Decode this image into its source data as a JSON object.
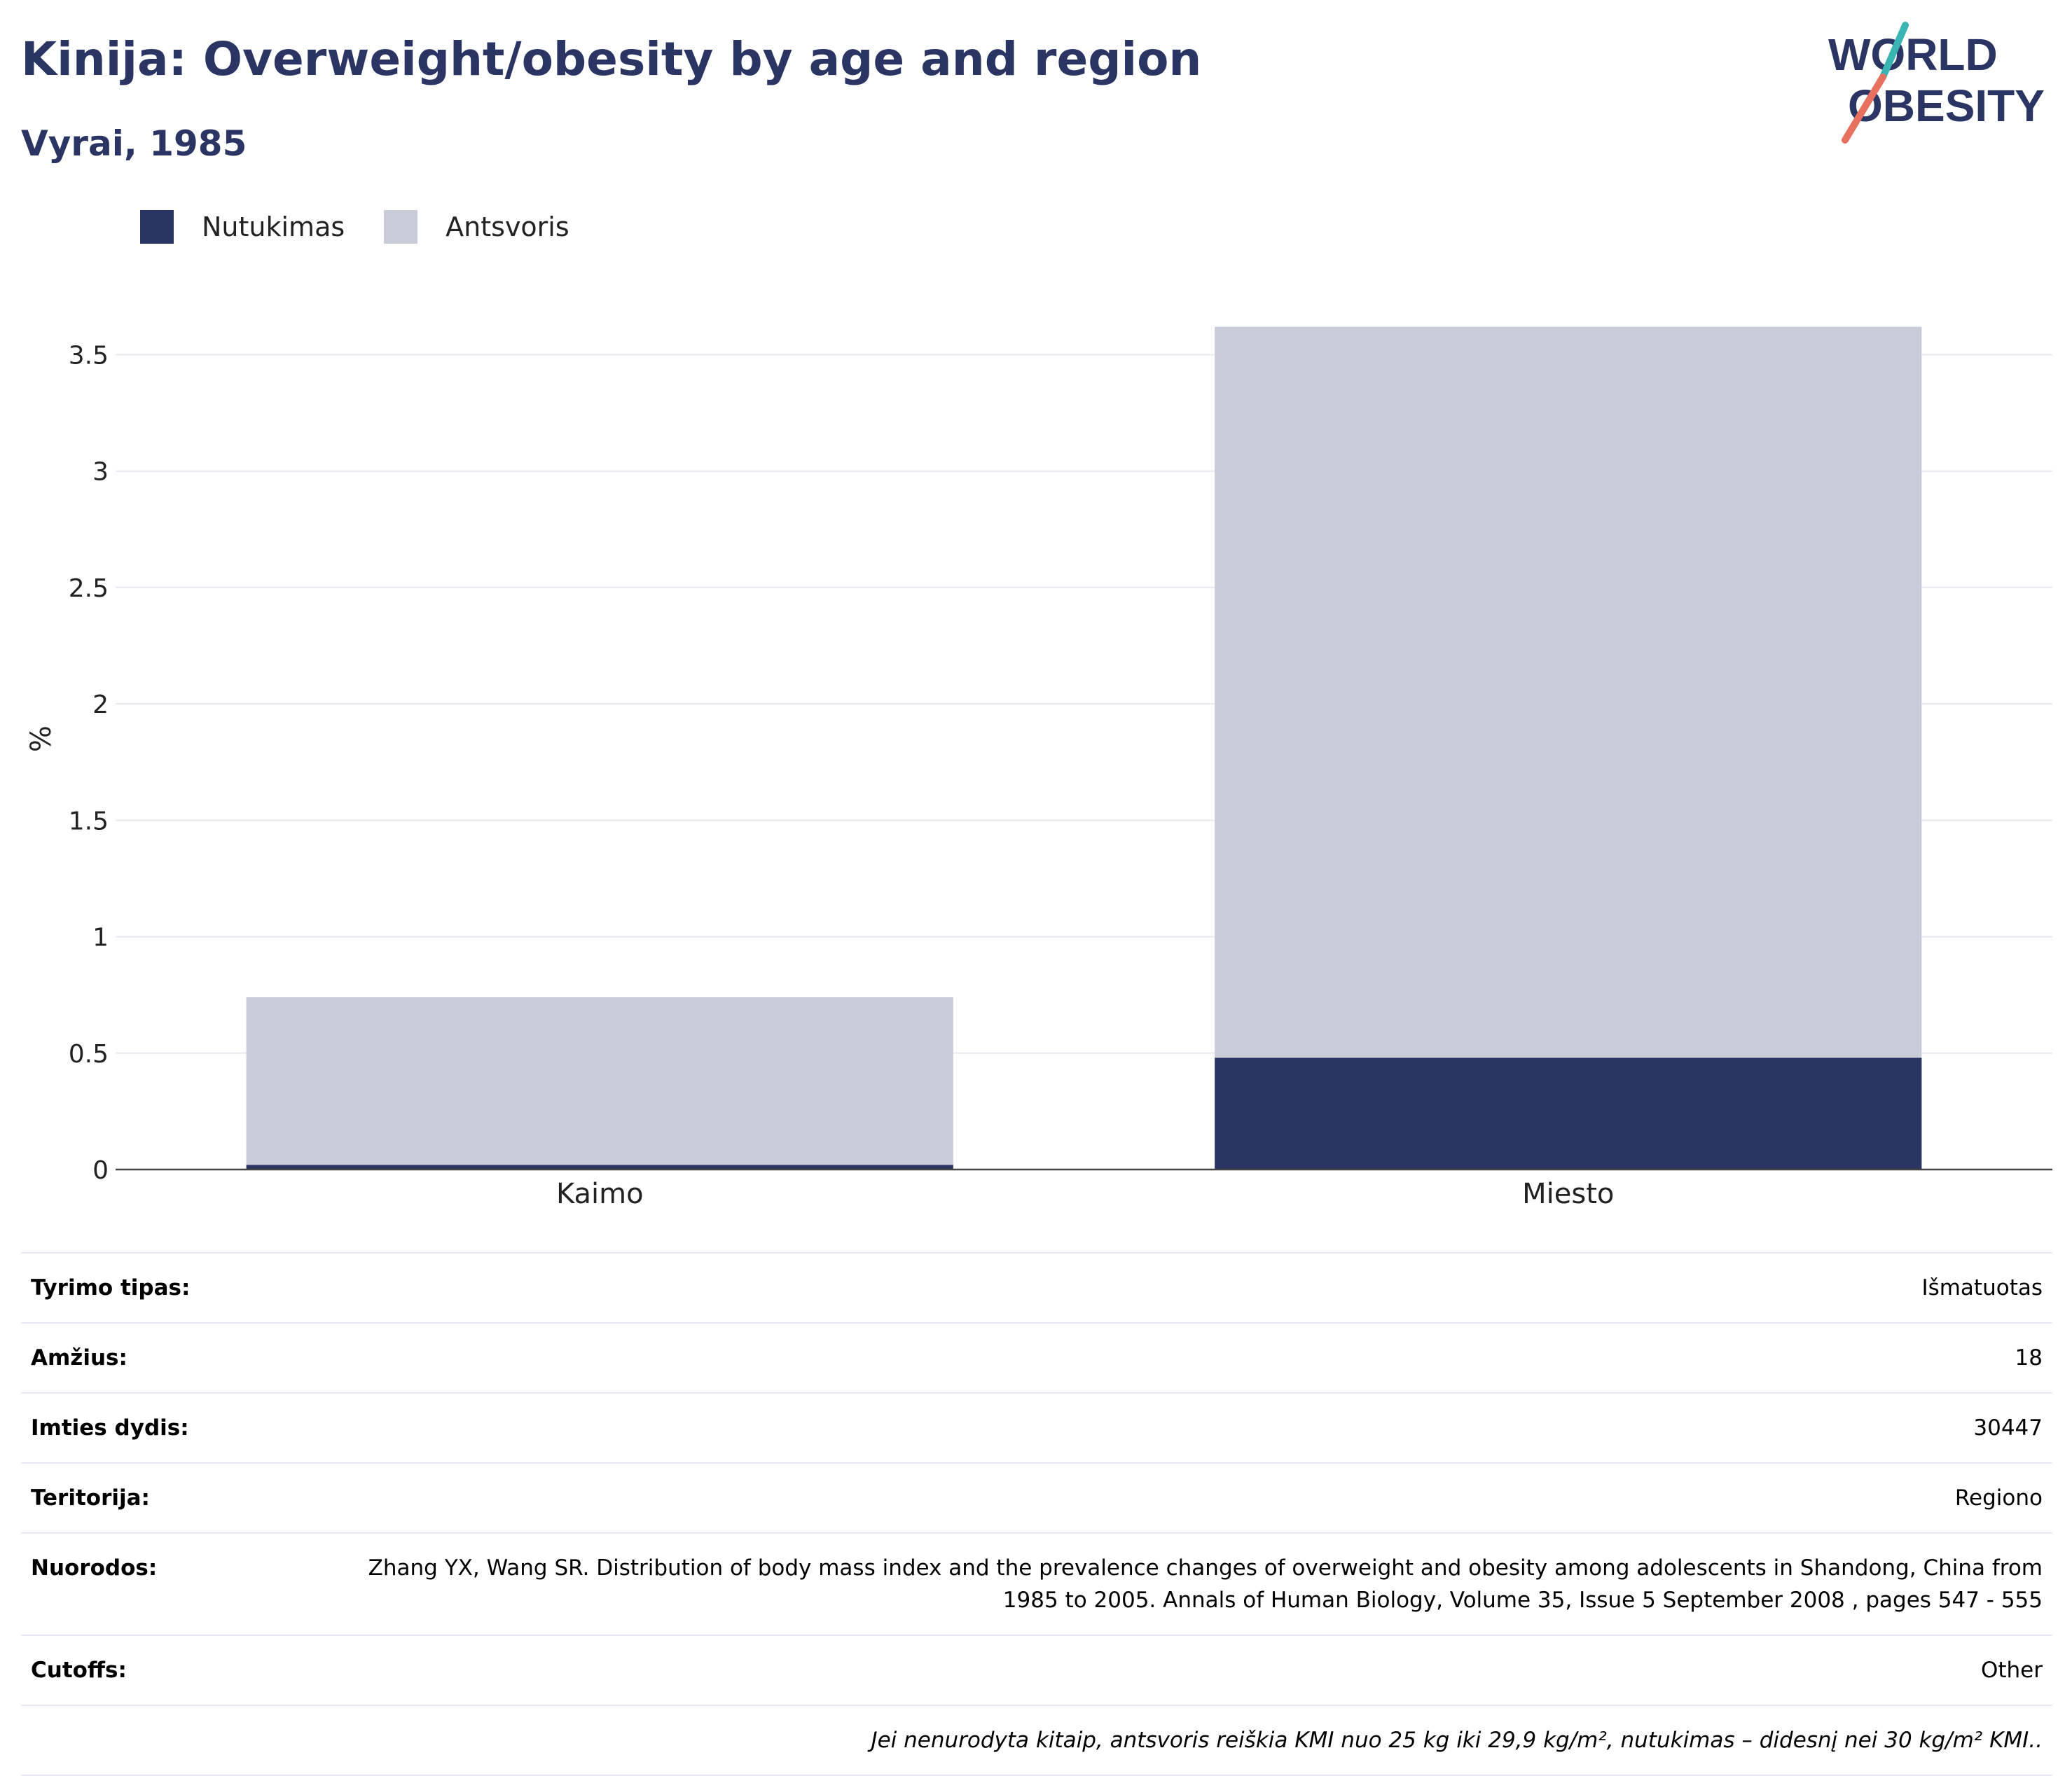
{
  "header": {
    "title": "Kinija: Overweight/obesity by age and region",
    "subtitle": "Vyrai, 1985"
  },
  "logo": {
    "line1": "WORLD",
    "line2": "OBESITY"
  },
  "colors": {
    "obesity": "#2a3564",
    "overweight": "#c9ccd8",
    "accent_teal": "#3bb4b4",
    "accent_coral": "#e8705f"
  },
  "legend": [
    {
      "label": "Nutukimas",
      "color": "#2a3564"
    },
    {
      "label": "Antsvoris",
      "color": "#c9ccd8"
    }
  ],
  "chart_data": {
    "type": "bar",
    "stacked": true,
    "title": "Kinija: Overweight/obesity by age and region",
    "subtitle": "Vyrai, 1985",
    "categories": [
      "Kaimo",
      "Miesto"
    ],
    "series": [
      {
        "name": "Nutukimas",
        "color": "#2a3564",
        "values": [
          0.02,
          0.48
        ]
      },
      {
        "name": "Antsvoris",
        "color": "#c9ccd8",
        "values": [
          0.72,
          3.14
        ]
      }
    ],
    "ylabel": "%",
    "ylim": [
      0,
      3.7
    ],
    "yticks": [
      0,
      0.5,
      1,
      1.5,
      2,
      2.5,
      3,
      3.5
    ],
    "ytick_labels": [
      "0",
      "0.5",
      "1",
      "1.5",
      "2",
      "2.5",
      "3",
      "3.5"
    ],
    "grid": true,
    "legend_position": "top-left"
  },
  "info": {
    "rows": [
      {
        "label": "Tyrimo tipas:",
        "value": "Išmatuotas"
      },
      {
        "label": "Amžius:",
        "value": "18"
      },
      {
        "label": "Imties dydis:",
        "value": "30447"
      },
      {
        "label": "Teritorija:",
        "value": "Regiono"
      },
      {
        "label": "Nuorodos:",
        "value": "Zhang YX, Wang SR. Distribution of body mass index and the prevalence changes of overweight and obesity among adolescents in Shandong, China from 1985 to 2005. Annals of Human Biology, Volume 35, Issue 5 September 2008 , pages 547 - 555"
      },
      {
        "label": "Cutoffs:",
        "value": "Other"
      }
    ],
    "note": "Jei nenurodyta kitaip, antsvoris reiškia KMI nuo 25 kg iki 29,9 kg/m², nutukimas – didesnį nei 30 kg/m² KMI.."
  }
}
